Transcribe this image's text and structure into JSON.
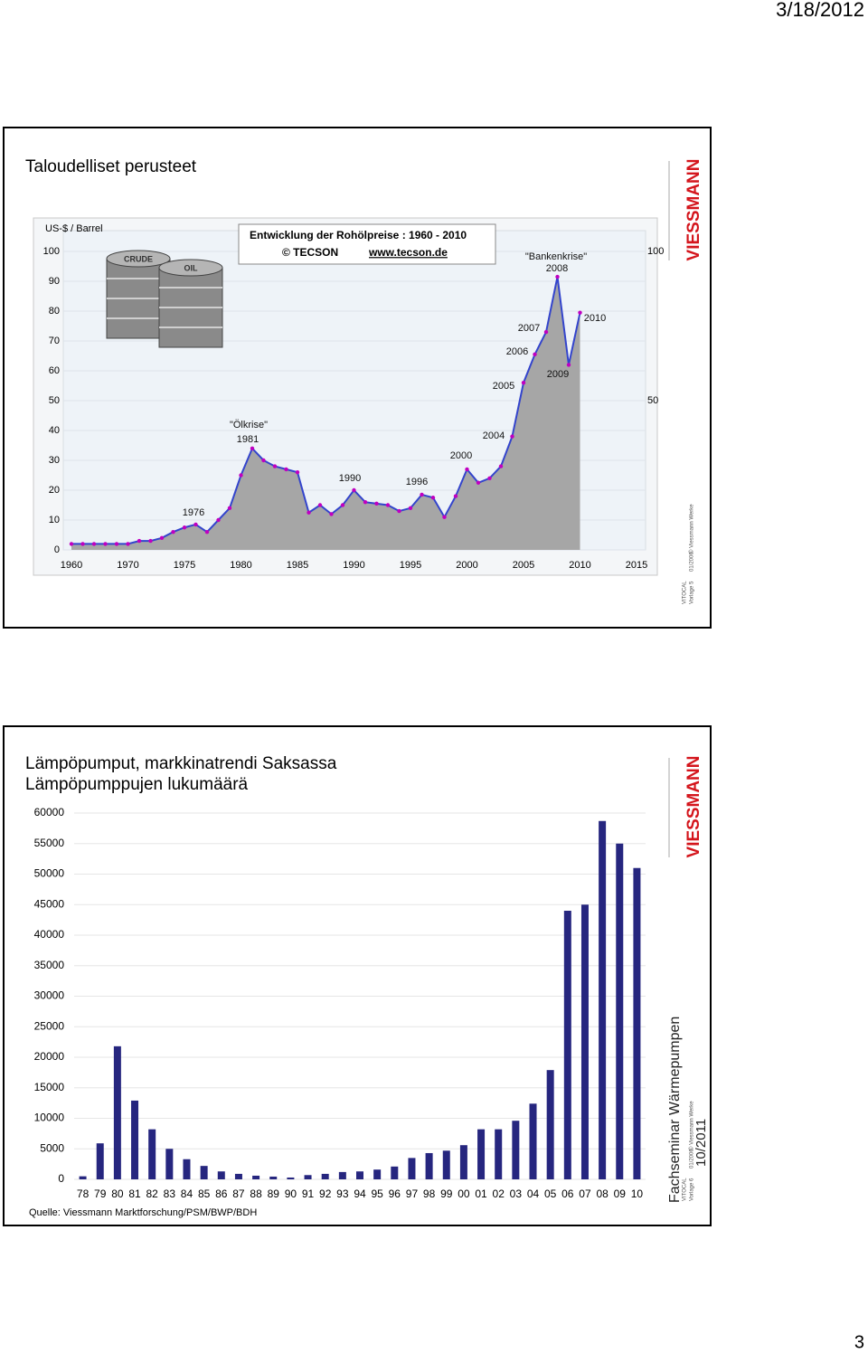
{
  "date": "3/18/2012",
  "page_number": "3",
  "slides": [
    {
      "title": "Taloudelliset perusteet",
      "logo": "VIESSMANN",
      "footer": [
        "VITOCAL",
        "Vorlage 5",
        "01/2006",
        "© Viessmann Werke"
      ]
    },
    {
      "logo": "VIESSMANN",
      "side_title": "Fachseminar Wärmepumpen",
      "side_date": "10/2011",
      "footer": [
        "VITOCAL",
        "Vorlage 6",
        "01/2006",
        "© Viessmann Werke"
      ]
    }
  ],
  "chart_data": [
    {
      "type": "area",
      "title": "Entwicklung der Rohölpreise : 1960 - 2010",
      "credit": "© TECSON",
      "url": "www.tecson.de",
      "ylabel": "US-$ / Barrel",
      "barrel_labels": [
        "CRUDE",
        "OIL"
      ],
      "x": [
        1960,
        1962,
        1964,
        1966,
        1968,
        1970,
        1971,
        1972,
        1973,
        1974,
        1975,
        1976,
        1977,
        1978,
        1979,
        1980,
        1981,
        1982,
        1983,
        1984,
        1985,
        1986,
        1987,
        1988,
        1989,
        1990,
        1991,
        1992,
        1993,
        1994,
        1995,
        1996,
        1997,
        1998,
        1999,
        2000,
        2001,
        2002,
        2003,
        2004,
        2005,
        2006,
        2007,
        2008,
        2009,
        2010
      ],
      "values": [
        2,
        2,
        2,
        2,
        2,
        2,
        3,
        3,
        4,
        6,
        7.5,
        8.5,
        6,
        10,
        14,
        25,
        34,
        30,
        28,
        27,
        26,
        12.5,
        15,
        12,
        15,
        20,
        16,
        15.5,
        15,
        13,
        14,
        18.5,
        17.5,
        11,
        18,
        27,
        22.5,
        24,
        28,
        38,
        56,
        65.5,
        73,
        91.5,
        62,
        79.5
      ],
      "color": "#3344cc",
      "marker_color": "#c000c0",
      "fill_color": "#a6a6a6",
      "xlim": [
        1960,
        2015
      ],
      "xticks": [
        1960,
        1970,
        1975,
        1980,
        1985,
        1990,
        1995,
        2000,
        2005,
        2010,
        2015
      ],
      "ylim": [
        0,
        100
      ],
      "yticks": [
        0,
        10,
        20,
        30,
        40,
        50,
        60,
        70,
        80,
        90,
        100
      ],
      "y2lim": [
        0,
        100
      ],
      "y2ticks": [
        50,
        100
      ],
      "annotations": [
        "\"Ölkrise\"",
        "1981",
        "1976",
        "1990",
        "1996",
        "2000",
        "2004",
        "2005",
        "2006",
        "2007",
        "\"Bankenkrise\"",
        "2008",
        "2009",
        "2010"
      ]
    },
    {
      "type": "bar",
      "title": [
        "Lämpöpumput, markkinatrendi Saksassa",
        "Lämpöpumppujen lukumäärä"
      ],
      "source": "Quelle: Viessmann Marktforschung/PSM/BWP/BDH",
      "categories": [
        "78",
        "79",
        "80",
        "81",
        "82",
        "83",
        "84",
        "85",
        "86",
        "87",
        "88",
        "89",
        "90",
        "91",
        "92",
        "93",
        "94",
        "95",
        "96",
        "97",
        "98",
        "99",
        "00",
        "01",
        "02",
        "03",
        "04",
        "05",
        "06",
        "07",
        "08",
        "09",
        "10"
      ],
      "values": [
        500,
        5900,
        21800,
        12900,
        8200,
        5000,
        3300,
        2200,
        1300,
        900,
        600,
        450,
        300,
        700,
        900,
        1200,
        1300,
        1600,
        2100,
        3500,
        4300,
        4700,
        5600,
        8200,
        8200,
        9600,
        12400,
        17900,
        44000,
        45000,
        58700,
        55000,
        51000
      ],
      "color": "#26267f",
      "ylim": [
        0,
        60000
      ],
      "yticks": [
        0,
        5000,
        10000,
        15000,
        20000,
        25000,
        30000,
        35000,
        40000,
        45000,
        50000,
        55000,
        60000
      ],
      "grid": true
    }
  ]
}
